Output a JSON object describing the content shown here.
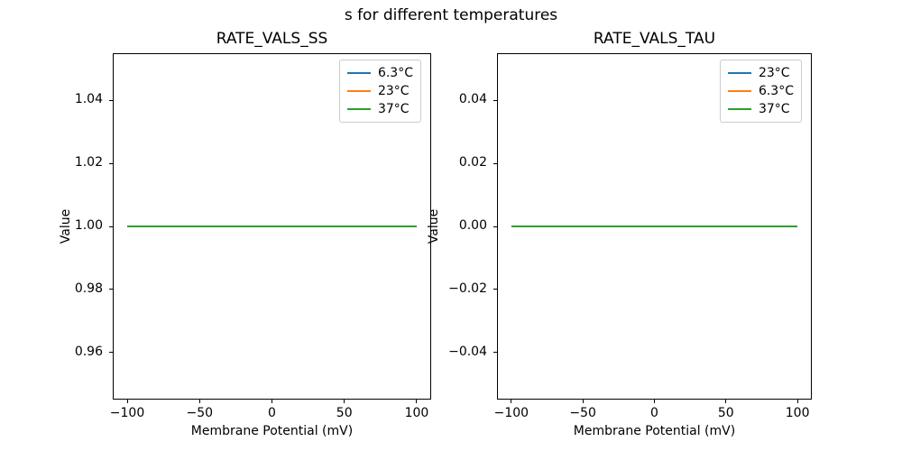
{
  "figure": {
    "suptitle": "s for different temperatures",
    "background_color": "#ffffff",
    "text_color": "#000000",
    "spine_color": "#000000",
    "legend_border_color": "#cccccc"
  },
  "chart_data": [
    {
      "type": "line",
      "title": "RATE_VALS_SS",
      "xlabel": "Membrane Potential (mV)",
      "ylabel": "Value",
      "xlim": [
        -110,
        110
      ],
      "ylim": [
        0.945,
        1.055
      ],
      "xticks": [
        -100,
        -50,
        0,
        50,
        100
      ],
      "xtick_labels": [
        "−100",
        "−50",
        "0",
        "50",
        "100"
      ],
      "yticks": [
        0.96,
        0.98,
        1.0,
        1.02,
        1.04
      ],
      "ytick_labels": [
        "0.96",
        "0.98",
        "1.00",
        "1.02",
        "1.04"
      ],
      "grid": false,
      "legend_location": "upper right",
      "x_start": -100,
      "x_end": 100,
      "series": [
        {
          "name": "6.3°C",
          "color": "#1f77b4",
          "value": 1.0
        },
        {
          "name": "23°C",
          "color": "#ff7f0e",
          "value": 1.0
        },
        {
          "name": "37°C",
          "color": "#2ca02c",
          "value": 1.0
        }
      ]
    },
    {
      "type": "line",
      "title": "RATE_VALS_TAU",
      "xlabel": "Membrane Potential (mV)",
      "ylabel": "Value",
      "xlim": [
        -110,
        110
      ],
      "ylim": [
        -0.055,
        0.055
      ],
      "xticks": [
        -100,
        -50,
        0,
        50,
        100
      ],
      "xtick_labels": [
        "−100",
        "−50",
        "0",
        "50",
        "100"
      ],
      "yticks": [
        -0.04,
        -0.02,
        0.0,
        0.02,
        0.04
      ],
      "ytick_labels": [
        "−0.04",
        "−0.02",
        "0.00",
        "0.02",
        "0.04"
      ],
      "grid": false,
      "legend_location": "upper right",
      "x_start": -100,
      "x_end": 100,
      "series": [
        {
          "name": "23°C",
          "color": "#1f77b4",
          "value": 0.0
        },
        {
          "name": "6.3°C",
          "color": "#ff7f0e",
          "value": 0.0
        },
        {
          "name": "37°C",
          "color": "#2ca02c",
          "value": 0.0
        }
      ]
    }
  ]
}
